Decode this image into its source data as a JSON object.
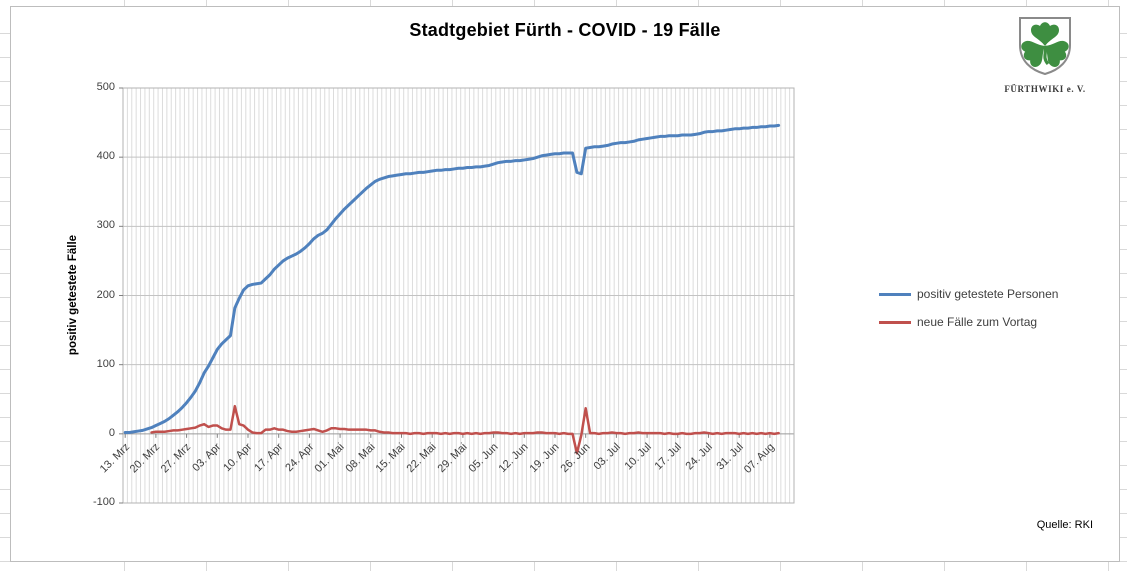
{
  "chart": {
    "title": "Stadtgebiet Fürth - COVID - 19 Fälle",
    "y_axis_title": "positiv getestete Fälle",
    "source_note": "Quelle: RKI",
    "legend": [
      {
        "label": "positiv getestete Personen",
        "color": "#4F81BD"
      },
      {
        "label": "neue Fälle zum Vortag",
        "color": "#C0504D"
      }
    ]
  },
  "logo": {
    "caption": "FÜRTHWIKI e. V.",
    "clover_color": "#3E8E41",
    "shield_outline_color": "#8a8a8a"
  },
  "chart_data": {
    "type": "line",
    "title": "Stadtgebiet Fürth - COVID - 19 Fälle",
    "xlabel": "",
    "ylabel": "positiv getestete Fälle",
    "ylim": [
      -100,
      500
    ],
    "y_ticks": [
      500,
      400,
      300,
      200,
      100,
      0,
      -100
    ],
    "x_unit": "day",
    "x_tick_every_days": 7,
    "x_tick_labels": [
      "13. Mrz",
      "20. Mrz",
      "27. Mrz",
      "03. Apr",
      "10. Apr",
      "17. Apr",
      "24. Apr",
      "01. Mai",
      "08. Mai",
      "15. Mai",
      "22. Mai",
      "29. Mai",
      "05. Jun",
      "12. Jun",
      "19. Jun",
      "26. Jun",
      "03. Jul",
      "10. Jul",
      "17. Jul",
      "24. Jul",
      "31. Jul",
      "07. Aug"
    ],
    "grid": {
      "vertical_per_day": true,
      "horizontal_step": 100
    },
    "legend_position": "right-outside",
    "series": [
      {
        "name": "positiv getestete Personen",
        "color": "#4F81BD",
        "width": 3,
        "values": [
          2,
          2,
          3,
          4,
          5,
          7,
          9,
          12,
          15,
          18,
          22,
          27,
          32,
          38,
          45,
          53,
          62,
          74,
          88,
          98,
          110,
          122,
          130,
          136,
          142,
          182,
          196,
          208,
          214,
          216,
          217,
          218,
          224,
          230,
          238,
          244,
          250,
          254,
          257,
          260,
          264,
          269,
          275,
          282,
          287,
          290,
          295,
          303,
          311,
          318,
          325,
          331,
          337,
          343,
          349,
          355,
          360,
          365,
          368,
          370,
          372,
          373,
          374,
          375,
          376,
          376,
          377,
          378,
          378,
          379,
          380,
          381,
          381,
          382,
          382,
          383,
          384,
          384,
          385,
          385,
          386,
          386,
          387,
          388,
          390,
          392,
          393,
          394,
          394,
          395,
          395,
          396,
          397,
          398,
          400,
          402,
          403,
          404,
          405,
          405,
          406,
          406,
          406,
          378,
          376,
          413,
          414,
          415,
          415,
          416,
          417,
          419,
          420,
          421,
          421,
          422,
          423,
          425,
          426,
          427,
          428,
          429,
          430,
          430,
          431,
          431,
          431,
          432,
          432,
          432,
          433,
          434,
          436,
          437,
          437,
          438,
          438,
          439,
          440,
          441,
          441,
          442,
          442,
          443,
          443,
          444,
          444,
          445,
          445,
          446
        ]
      },
      {
        "name": "neue Fälle zum Vortag",
        "color": "#C0504D",
        "width": 2.5,
        "values": [
          null,
          null,
          null,
          null,
          null,
          null,
          2,
          3,
          3,
          3,
          4,
          5,
          5,
          6,
          7,
          8,
          9,
          12,
          14,
          10,
          12,
          12,
          8,
          6,
          6,
          40,
          14,
          12,
          6,
          2,
          1,
          1,
          6,
          6,
          8,
          6,
          6,
          4,
          3,
          3,
          4,
          5,
          6,
          7,
          5,
          3,
          5,
          8,
          8,
          7,
          7,
          6,
          6,
          6,
          6,
          6,
          5,
          5,
          3,
          2,
          2,
          1,
          1,
          1,
          1,
          0,
          1,
          1,
          0,
          1,
          1,
          1,
          0,
          1,
          0,
          1,
          1,
          0,
          1,
          0,
          1,
          0,
          1,
          1,
          2,
          2,
          1,
          1,
          0,
          1,
          0,
          1,
          1,
          1,
          2,
          2,
          1,
          1,
          1,
          0,
          1,
          0,
          0,
          -28,
          -2,
          37,
          1,
          1,
          0,
          1,
          1,
          2,
          1,
          1,
          0,
          1,
          1,
          2,
          1,
          1,
          1,
          1,
          1,
          0,
          1,
          0,
          0,
          1,
          0,
          0,
          1,
          1,
          2,
          1,
          0,
          1,
          0,
          1,
          1,
          1,
          0,
          1,
          0,
          1,
          0,
          1,
          0,
          1,
          0,
          1
        ]
      }
    ]
  }
}
